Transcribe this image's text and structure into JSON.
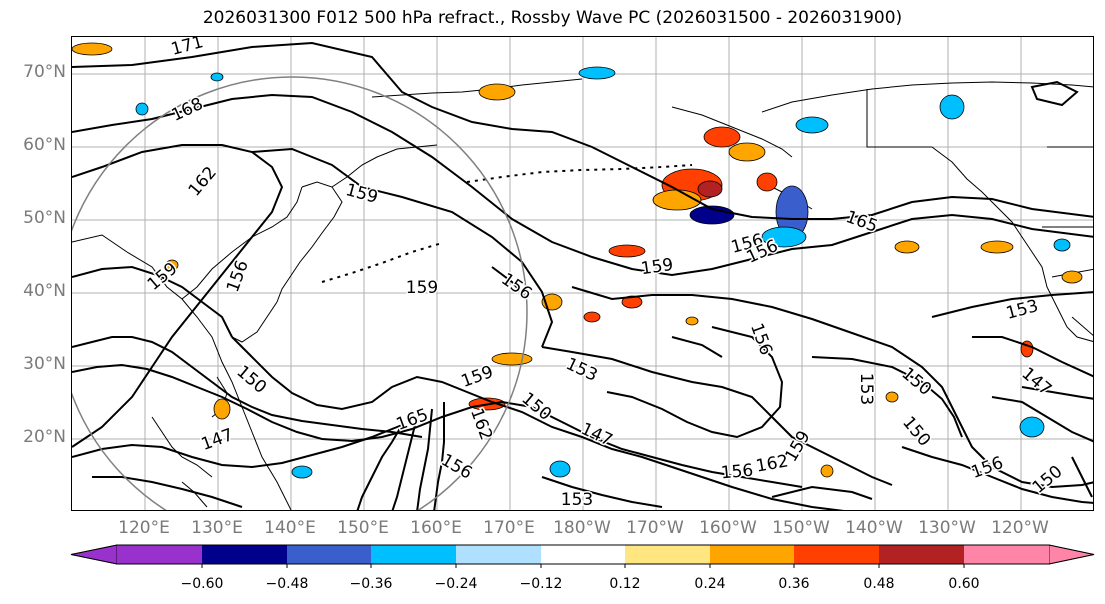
{
  "title": "2026031300 F012 500 hPa refract., Rossby Wave PC (2026031500 - 2026031900)",
  "lat_labels": [
    "70°N",
    "60°N",
    "50°N",
    "40°N",
    "30°N",
    "20°N"
  ],
  "lon_labels": [
    "120°E",
    "130°E",
    "140°E",
    "150°E",
    "160°E",
    "170°E",
    "180°W",
    "170°W",
    "160°W",
    "150°W",
    "140°W",
    "130°W",
    "120°W"
  ],
  "contour_labels": [
    "171",
    "168",
    "162",
    "159",
    "159",
    "156",
    "159",
    "156",
    "156",
    "150",
    "147",
    "159",
    "165",
    "153",
    "150",
    "147",
    "162",
    "156",
    "159",
    "156",
    "165",
    "156",
    "153",
    "150",
    "150",
    "156",
    "150",
    "147",
    "153",
    "156",
    "159",
    "162",
    "153"
  ],
  "colorbar": {
    "ticks": [
      "−0.60",
      "−0.48",
      "−0.36",
      "−0.24",
      "−0.12",
      "0.12",
      "0.24",
      "0.36",
      "0.48",
      "0.60"
    ],
    "colors": [
      "#9932cc",
      "#00008b",
      "#3a5fcd",
      "#00bfff",
      "#b0e0ff",
      "#ffffff",
      "#ffe680",
      "#ffa500",
      "#ff4000",
      "#b22222",
      "#ff85a8"
    ]
  },
  "chart_data": {
    "type": "map",
    "projection": "equirectangular",
    "lon_range": [
      "110°E",
      "115°W"
    ],
    "lat_range": [
      "10°N",
      "75°N"
    ],
    "gridlines": true,
    "contour_field": "500 hPa refractivity",
    "shaded_field": "Rossby Wave PC",
    "colorbar_levels": [
      -0.6,
      -0.48,
      -0.36,
      -0.24,
      -0.12,
      0.12,
      0.24,
      0.36,
      0.48,
      0.6
    ]
  }
}
